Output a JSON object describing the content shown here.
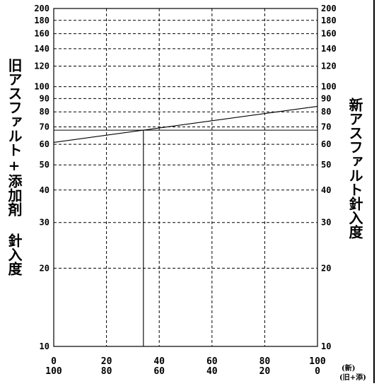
{
  "chart_data": {
    "type": "line",
    "title": "",
    "ylabel_left": "旧アスファルト+添加剤 針入度",
    "ylabel_right": "新アスファルト針入度",
    "x_unit_top": "(新)",
    "x_unit_bottom": "(旧+添)",
    "x_ticks_top": [
      "0",
      "20",
      "40",
      "60",
      "80",
      "100"
    ],
    "x_ticks_bottom": [
      "100",
      "80",
      "60",
      "40",
      "20",
      "0"
    ],
    "y_scale": "log",
    "ylim": [
      10,
      200
    ],
    "y_ticks": [
      "10",
      "20",
      "30",
      "40",
      "50",
      "60",
      "70",
      "80",
      "90",
      "100",
      "120",
      "140",
      "160",
      "180",
      "200"
    ],
    "grid": true,
    "series": [
      {
        "x": [
          0,
          100
        ],
        "y": [
          61,
          84
        ]
      }
    ],
    "guides": {
      "x": 34,
      "y": 68
    }
  }
}
